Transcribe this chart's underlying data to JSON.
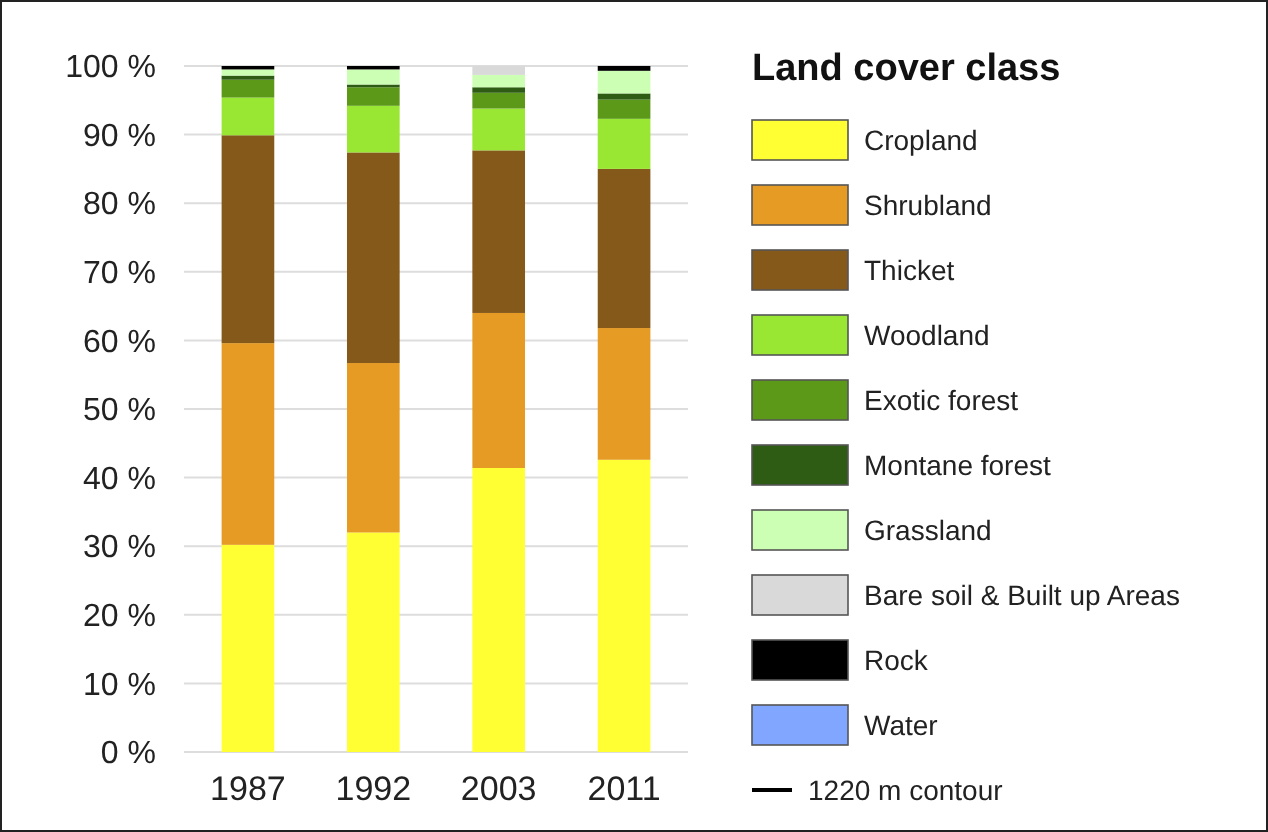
{
  "chart_data": {
    "type": "bar",
    "stacked": true,
    "legend_title": "Land cover class",
    "legend": "right",
    "grid": "y",
    "categories": [
      "1987",
      "1992",
      "2003",
      "2011"
    ],
    "ylim": [
      0,
      100
    ],
    "yticks": [
      {
        "value": 0,
        "label": "0 %"
      },
      {
        "value": 10,
        "label": "10 %"
      },
      {
        "value": 20,
        "label": "20 %"
      },
      {
        "value": 30,
        "label": "30 %"
      },
      {
        "value": 40,
        "label": "40 %"
      },
      {
        "value": 50,
        "label": "50 %"
      },
      {
        "value": 60,
        "label": "60 %"
      },
      {
        "value": 70,
        "label": "70 %"
      },
      {
        "value": 80,
        "label": "80 %"
      },
      {
        "value": 90,
        "label": "90 %"
      },
      {
        "value": 100,
        "label": "100 %"
      }
    ],
    "series": [
      {
        "name": "Cropland",
        "color": "#ffff33",
        "values": [
          30.2,
          32.0,
          41.4,
          42.6
        ]
      },
      {
        "name": "Shrubland",
        "color": "#e69c24",
        "values": [
          29.4,
          24.7,
          22.6,
          19.2
        ]
      },
      {
        "name": "Thicket",
        "color": "#85591a",
        "values": [
          30.3,
          30.7,
          23.7,
          23.2
        ]
      },
      {
        "name": "Woodland",
        "color": "#99e633",
        "values": [
          5.5,
          6.8,
          6.1,
          7.3
        ]
      },
      {
        "name": "Exotic forest",
        "color": "#5c9919",
        "values": [
          2.6,
          2.7,
          2.3,
          2.8
        ]
      },
      {
        "name": "Montane forest",
        "color": "#2e5c14",
        "values": [
          0.6,
          0.4,
          0.8,
          0.9
        ]
      },
      {
        "name": "Grassland",
        "color": "#ccffb3",
        "values": [
          0.9,
          2.2,
          1.8,
          3.3
        ]
      },
      {
        "name": "Bare soil & Built up Areas",
        "color": "#d9d9d9",
        "values": [
          0,
          0,
          1.3,
          0
        ]
      },
      {
        "name": "Rock",
        "color": "#000000",
        "values": [
          0.5,
          0.5,
          0,
          0.7
        ]
      },
      {
        "name": "Water",
        "color": "#80a6ff",
        "values": [
          0,
          0,
          0,
          0
        ]
      },
      {
        "name": "1220 m contour",
        "type": "line",
        "color": "#000000",
        "values": [
          null,
          null,
          null,
          null
        ]
      }
    ]
  }
}
